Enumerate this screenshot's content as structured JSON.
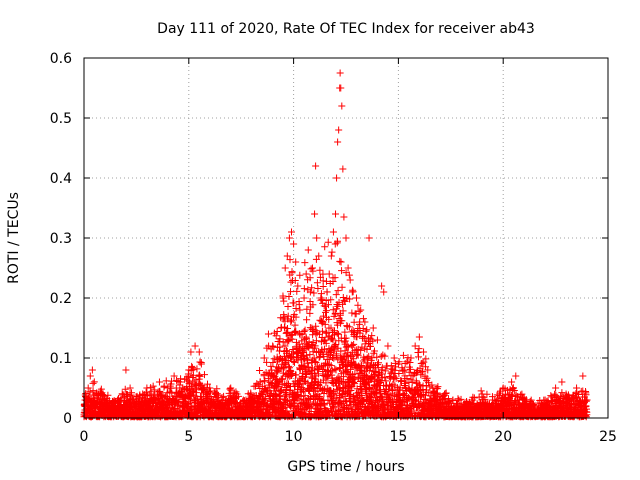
{
  "chart_data": {
    "type": "scatter",
    "title": "Day 111 of 2020, Rate Of TEC Index for receiver ab43",
    "xlabel": "GPS time / hours",
    "ylabel": "ROTI / TECUs",
    "xlim": [
      0,
      25
    ],
    "ylim": [
      0,
      0.6
    ],
    "x_ticks": [
      0,
      5,
      10,
      15,
      20,
      25
    ],
    "y_ticks": [
      0,
      0.1,
      0.2,
      0.3,
      0.4,
      0.5,
      0.6
    ],
    "x_tick_labels": [
      "0",
      "5",
      "10",
      "15",
      "20",
      "25"
    ],
    "y_tick_labels": [
      "0",
      "0.1",
      "0.2",
      "0.3",
      "0.4",
      "0.5",
      "0.6"
    ],
    "grid": true,
    "marker": "plus",
    "color": "#ff0000",
    "points": [
      [
        0.05,
        0.03
      ],
      [
        0.2,
        0.05
      ],
      [
        0.3,
        0.07
      ],
      [
        0.4,
        0.08
      ],
      [
        0.5,
        0.02
      ],
      [
        0.8,
        0.04
      ],
      [
        1.0,
        0.03
      ],
      [
        1.3,
        0.02
      ],
      [
        1.6,
        0.03
      ],
      [
        2.0,
        0.08
      ],
      [
        2.2,
        0.05
      ],
      [
        2.5,
        0.02
      ],
      [
        2.8,
        0.04
      ],
      [
        3.0,
        0.05
      ],
      [
        3.3,
        0.03
      ],
      [
        3.6,
        0.06
      ],
      [
        4.0,
        0.05
      ],
      [
        4.3,
        0.07
      ],
      [
        4.6,
        0.06
      ],
      [
        5.0,
        0.08
      ],
      [
        5.1,
        0.11
      ],
      [
        5.3,
        0.12
      ],
      [
        5.5,
        0.11
      ],
      [
        5.6,
        0.09
      ],
      [
        6.0,
        0.05
      ],
      [
        6.3,
        0.04
      ],
      [
        6.6,
        0.03
      ],
      [
        7.0,
        0.05
      ],
      [
        7.3,
        0.04
      ],
      [
        7.6,
        0.03
      ],
      [
        8.0,
        0.03
      ],
      [
        8.4,
        0.06
      ],
      [
        8.6,
        0.1
      ],
      [
        8.8,
        0.14
      ],
      [
        9.0,
        0.12
      ],
      [
        9.2,
        0.08
      ],
      [
        9.4,
        0.15
      ],
      [
        9.5,
        0.2
      ],
      [
        9.6,
        0.25
      ],
      [
        9.7,
        0.27
      ],
      [
        9.8,
        0.3
      ],
      [
        9.9,
        0.31
      ],
      [
        10.0,
        0.29
      ],
      [
        10.1,
        0.26
      ],
      [
        10.2,
        0.22
      ],
      [
        10.3,
        0.18
      ],
      [
        10.4,
        0.14
      ],
      [
        10.5,
        0.2
      ],
      [
        10.6,
        0.24
      ],
      [
        10.7,
        0.28
      ],
      [
        10.8,
        0.21
      ],
      [
        10.9,
        0.25
      ],
      [
        11.0,
        0.34
      ],
      [
        11.05,
        0.42
      ],
      [
        11.1,
        0.3
      ],
      [
        11.2,
        0.27
      ],
      [
        11.3,
        0.2
      ],
      [
        11.4,
        0.16
      ],
      [
        11.5,
        0.13
      ],
      [
        11.6,
        0.21
      ],
      [
        11.7,
        0.24
      ],
      [
        11.8,
        0.27
      ],
      [
        11.9,
        0.31
      ],
      [
        12.0,
        0.34
      ],
      [
        12.05,
        0.4
      ],
      [
        12.1,
        0.46
      ],
      [
        12.15,
        0.48
      ],
      [
        12.2,
        0.55
      ],
      [
        12.22,
        0.575
      ],
      [
        12.25,
        0.55
      ],
      [
        12.3,
        0.52
      ],
      [
        12.35,
        0.415
      ],
      [
        12.4,
        0.335
      ],
      [
        12.5,
        0.3
      ],
      [
        12.6,
        0.25
      ],
      [
        12.7,
        0.23
      ],
      [
        12.8,
        0.21
      ],
      [
        13.0,
        0.2
      ],
      [
        13.2,
        0.18
      ],
      [
        13.4,
        0.16
      ],
      [
        13.6,
        0.3
      ],
      [
        13.8,
        0.15
      ],
      [
        14.0,
        0.13
      ],
      [
        14.2,
        0.22
      ],
      [
        14.3,
        0.21
      ],
      [
        14.5,
        0.12
      ],
      [
        14.8,
        0.1
      ],
      [
        15.0,
        0.09
      ],
      [
        15.3,
        0.08
      ],
      [
        15.6,
        0.1
      ],
      [
        15.8,
        0.12
      ],
      [
        16.0,
        0.135
      ],
      [
        16.2,
        0.11
      ],
      [
        16.4,
        0.08
      ],
      [
        16.8,
        0.05
      ],
      [
        17.2,
        0.04
      ],
      [
        17.6,
        0.03
      ],
      [
        18.0,
        0.02
      ],
      [
        18.5,
        0.03
      ],
      [
        19.0,
        0.04
      ],
      [
        19.5,
        0.03
      ],
      [
        20.0,
        0.05
      ],
      [
        20.4,
        0.06
      ],
      [
        20.6,
        0.07
      ],
      [
        21.0,
        0.03
      ],
      [
        21.5,
        0.02
      ],
      [
        22.0,
        0.03
      ],
      [
        22.5,
        0.05
      ],
      [
        22.8,
        0.06
      ],
      [
        23.0,
        0.04
      ],
      [
        23.5,
        0.05
      ],
      [
        23.8,
        0.07
      ],
      [
        24.0,
        0.03
      ]
    ],
    "envelope": [
      [
        0,
        0.03
      ],
      [
        0.5,
        0.04
      ],
      [
        1,
        0.03
      ],
      [
        1.5,
        0.025
      ],
      [
        2,
        0.035
      ],
      [
        2.5,
        0.03
      ],
      [
        3,
        0.035
      ],
      [
        3.5,
        0.04
      ],
      [
        4,
        0.04
      ],
      [
        4.5,
        0.045
      ],
      [
        5,
        0.06
      ],
      [
        5.5,
        0.07
      ],
      [
        6,
        0.04
      ],
      [
        6.5,
        0.035
      ],
      [
        7,
        0.035
      ],
      [
        7.5,
        0.03
      ],
      [
        8,
        0.03
      ],
      [
        8.5,
        0.07
      ],
      [
        9,
        0.1
      ],
      [
        9.5,
        0.16
      ],
      [
        10,
        0.2
      ],
      [
        10.5,
        0.18
      ],
      [
        11,
        0.22
      ],
      [
        11.5,
        0.2
      ],
      [
        12,
        0.22
      ],
      [
        12.5,
        0.2
      ],
      [
        13,
        0.15
      ],
      [
        13.5,
        0.12
      ],
      [
        14,
        0.1
      ],
      [
        14.5,
        0.08
      ],
      [
        15,
        0.07
      ],
      [
        15.5,
        0.08
      ],
      [
        16,
        0.1
      ],
      [
        16.5,
        0.06
      ],
      [
        17,
        0.035
      ],
      [
        17.5,
        0.025
      ],
      [
        18,
        0.02
      ],
      [
        18.5,
        0.025
      ],
      [
        19,
        0.03
      ],
      [
        19.5,
        0.025
      ],
      [
        20,
        0.035
      ],
      [
        20.5,
        0.04
      ],
      [
        21,
        0.025
      ],
      [
        21.5,
        0.02
      ],
      [
        22,
        0.025
      ],
      [
        22.5,
        0.035
      ],
      [
        23,
        0.03
      ],
      [
        23.5,
        0.035
      ],
      [
        24,
        0.03
      ]
    ]
  }
}
